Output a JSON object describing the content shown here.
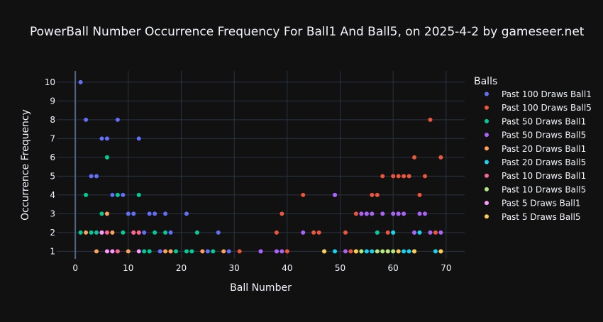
{
  "chart_data": {
    "type": "scatter",
    "title": "PowerBall Number Occurrence Frequency For Ball1 And Ball5, on 2025-4-2 by gameseer.net",
    "xlabel": "Ball Number",
    "ylabel": "Occurrence Frequency",
    "xlim": [
      -3.5,
      73.5
    ],
    "ylim": [
      0.6,
      10.6
    ],
    "xticks": [
      0,
      10,
      20,
      30,
      40,
      50,
      60,
      70
    ],
    "yticks": [
      1,
      2,
      3,
      4,
      5,
      6,
      7,
      8,
      9,
      10
    ],
    "grid": true,
    "legend_title": "Balls",
    "legend_position": "right",
    "series": [
      {
        "name": "Past 100 Draws Ball1",
        "color": "#636efa",
        "points": [
          [
            1,
            10
          ],
          [
            2,
            8
          ],
          [
            3,
            5
          ],
          [
            4,
            5
          ],
          [
            5,
            7
          ],
          [
            6,
            7
          ],
          [
            7,
            4
          ],
          [
            8,
            8
          ],
          [
            9,
            4
          ],
          [
            10,
            3
          ],
          [
            11,
            3
          ],
          [
            12,
            7
          ],
          [
            13,
            2
          ],
          [
            14,
            3
          ],
          [
            15,
            3
          ],
          [
            16,
            1
          ],
          [
            17,
            3
          ],
          [
            18,
            2
          ],
          [
            21,
            3
          ],
          [
            25,
            1
          ],
          [
            27,
            2
          ],
          [
            29,
            1
          ],
          [
            35,
            1
          ],
          [
            38,
            1
          ],
          [
            49,
            4
          ],
          [
            55,
            3
          ],
          [
            57,
            2
          ],
          [
            61,
            3
          ],
          [
            64,
            2
          ]
        ]
      },
      {
        "name": "Past 100 Draws Ball5",
        "color": "#ef553b",
        "points": [
          [
            11,
            2
          ],
          [
            12,
            2
          ],
          [
            31,
            1
          ],
          [
            38,
            2
          ],
          [
            39,
            3
          ],
          [
            40,
            1
          ],
          [
            43,
            4
          ],
          [
            45,
            2
          ],
          [
            46,
            2
          ],
          [
            51,
            2
          ],
          [
            52,
            1
          ],
          [
            53,
            3
          ],
          [
            56,
            4
          ],
          [
            57,
            4
          ],
          [
            58,
            5
          ],
          [
            59,
            2
          ],
          [
            60,
            5
          ],
          [
            61,
            5
          ],
          [
            62,
            5
          ],
          [
            63,
            5
          ],
          [
            64,
            6
          ],
          [
            65,
            4
          ],
          [
            66,
            5
          ],
          [
            67,
            8
          ],
          [
            68,
            2
          ],
          [
            69,
            6
          ]
        ]
      },
      {
        "name": "Past 50 Draws Ball1",
        "color": "#00cc96",
        "points": [
          [
            1,
            2
          ],
          [
            2,
            4
          ],
          [
            3,
            2
          ],
          [
            4,
            2
          ],
          [
            5,
            3
          ],
          [
            6,
            6
          ],
          [
            8,
            4
          ],
          [
            9,
            2
          ],
          [
            12,
            4
          ],
          [
            13,
            1
          ],
          [
            14,
            1
          ],
          [
            15,
            2
          ],
          [
            17,
            2
          ],
          [
            19,
            1
          ],
          [
            21,
            1
          ],
          [
            22,
            1
          ],
          [
            23,
            2
          ],
          [
            26,
            1
          ],
          [
            57,
            2
          ],
          [
            60,
            2
          ]
        ]
      },
      {
        "name": "Past 50 Draws Ball5",
        "color": "#ab63fa",
        "points": [
          [
            35,
            1
          ],
          [
            38,
            1
          ],
          [
            39,
            1
          ],
          [
            43,
            2
          ],
          [
            49,
            4
          ],
          [
            51,
            1
          ],
          [
            54,
            3
          ],
          [
            55,
            3
          ],
          [
            56,
            3
          ],
          [
            58,
            3
          ],
          [
            60,
            3
          ],
          [
            61,
            3
          ],
          [
            62,
            3
          ],
          [
            64,
            2
          ],
          [
            65,
            3
          ],
          [
            66,
            3
          ],
          [
            67,
            2
          ],
          [
            69,
            2
          ]
        ]
      },
      {
        "name": "Past 20 Draws Ball1",
        "color": "#ffa15a",
        "points": [
          [
            2,
            2
          ],
          [
            4,
            1
          ],
          [
            6,
            3
          ],
          [
            7,
            2
          ],
          [
            10,
            1
          ],
          [
            17,
            1
          ],
          [
            18,
            1
          ],
          [
            24,
            1
          ],
          [
            28,
            1
          ],
          [
            59,
            1
          ]
        ]
      },
      {
        "name": "Past 20 Draws Ball5",
        "color": "#19d3f3",
        "points": [
          [
            47,
            1
          ],
          [
            49,
            1
          ],
          [
            55,
            1
          ],
          [
            56,
            1
          ],
          [
            60,
            2
          ],
          [
            62,
            1
          ],
          [
            63,
            1
          ],
          [
            65,
            2
          ],
          [
            68,
            1
          ]
        ]
      },
      {
        "name": "Past 10 Draws Ball1",
        "color": "#ff6692",
        "points": [
          [
            5,
            2
          ],
          [
            6,
            2
          ],
          [
            8,
            1
          ],
          [
            11,
            2
          ],
          [
            12,
            2
          ]
        ]
      },
      {
        "name": "Past 10 Draws Ball5",
        "color": "#b6e880",
        "points": [
          [
            47,
            1
          ],
          [
            53,
            1
          ],
          [
            54,
            1
          ],
          [
            57,
            1
          ],
          [
            58,
            1
          ],
          [
            59,
            1
          ],
          [
            60,
            1
          ],
          [
            64,
            1
          ],
          [
            69,
            1
          ]
        ]
      },
      {
        "name": "Past 5 Draws Ball1",
        "color": "#ff97ff",
        "points": [
          [
            5,
            2
          ],
          [
            6,
            1
          ],
          [
            7,
            1
          ],
          [
            12,
            1
          ]
        ]
      },
      {
        "name": "Past 5 Draws Ball5",
        "color": "#fecb52",
        "points": [
          [
            47,
            1
          ],
          [
            53,
            1
          ],
          [
            61,
            1
          ],
          [
            64,
            1
          ],
          [
            69,
            1
          ]
        ]
      }
    ]
  }
}
